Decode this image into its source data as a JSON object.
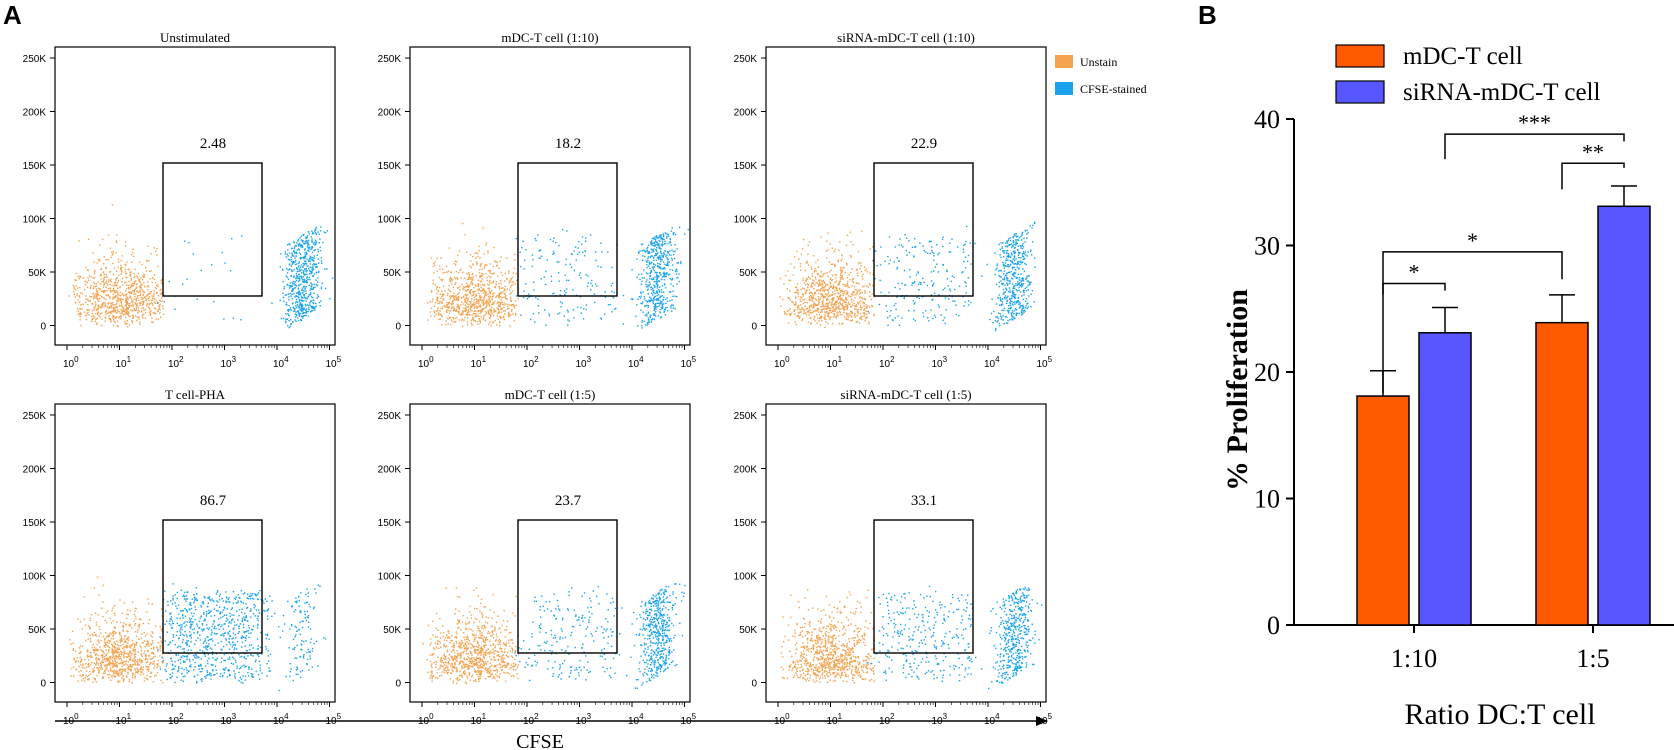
{
  "panel_a": {
    "letter": "A",
    "x_axis_label": "CFSE",
    "y_ticks": [
      "250K",
      "200K",
      "150K",
      "100K",
      "50K",
      "0"
    ],
    "x_ticks": [
      {
        "base": "10",
        "exp": "0"
      },
      {
        "base": "10",
        "exp": "1"
      },
      {
        "base": "10",
        "exp": "2"
      },
      {
        "base": "10",
        "exp": "3"
      },
      {
        "base": "10",
        "exp": "4"
      },
      {
        "base": "10",
        "exp": "5"
      }
    ],
    "legend": [
      {
        "label": "Unstain",
        "color": "#F4A24E"
      },
      {
        "label": "CFSE-stained",
        "color": "#1AA3EC"
      }
    ],
    "plots": [
      {
        "title": "Unstimulated",
        "gate_value": "2.48",
        "pct": 2.48
      },
      {
        "title": "mDC-T cell (1:10)",
        "gate_value": "18.2",
        "pct": 18.2
      },
      {
        "title": "siRNA-mDC-T cell (1:10)",
        "gate_value": "22.9",
        "pct": 22.9
      },
      {
        "title": "T cell-PHA",
        "gate_value": "86.7",
        "pct": 86.7
      },
      {
        "title": "mDC-T cell (1:5)",
        "gate_value": "23.7",
        "pct": 23.7
      },
      {
        "title": "siRNA-mDC-T cell (1:5)",
        "gate_value": "33.1",
        "pct": 33.1
      }
    ]
  },
  "chart_data": {
    "type": "bar",
    "panel_letter": "B",
    "categories": [
      "1:10",
      "1:5"
    ],
    "series": [
      {
        "name": "mDC-T cell",
        "values": [
          18.1,
          23.9
        ],
        "errors": [
          2.0,
          2.2
        ],
        "color": "#FF5A00"
      },
      {
        "name": "siRNA-mDC-T cell",
        "values": [
          23.1,
          33.1
        ],
        "errors": [
          2.0,
          1.6
        ],
        "color": "#5757FF"
      }
    ],
    "xlabel": "Ratio DC:T cell",
    "ylabel": "% Proliferation",
    "ylim": [
      0,
      40
    ],
    "yticks": [
      0,
      10,
      20,
      30,
      40
    ],
    "significance": [
      {
        "label": "*",
        "from": "mDC-T cell 1:10",
        "to": "siRNA-mDC-T cell 1:10"
      },
      {
        "label": "*",
        "from": "mDC-T cell 1:10",
        "to": "mDC-T cell 1:5"
      },
      {
        "label": "**",
        "from": "mDC-T cell 1:5",
        "to": "siRNA-mDC-T cell 1:5"
      },
      {
        "label": "***",
        "from": "siRNA-mDC-T cell 1:10",
        "to": "siRNA-mDC-T cell 1:5"
      }
    ]
  }
}
